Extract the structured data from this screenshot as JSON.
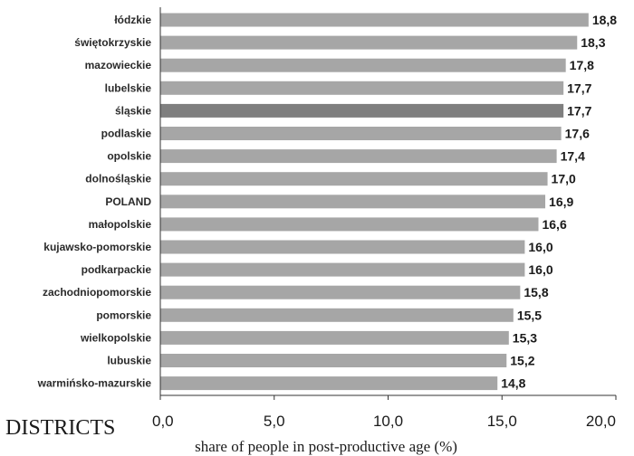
{
  "chart_data": {
    "type": "bar",
    "orientation": "horizontal",
    "categories": [
      "łódzkie",
      "świętokrzyskie",
      "mazowieckie",
      "lubelskie",
      "śląskie",
      "podlaskie",
      "opolskie",
      "dolnośląskie",
      "POLAND",
      "małopolskie",
      "kujawsko-pomorskie",
      "podkarpackie",
      "zachodniopomorskie",
      "pomorskie",
      "wielkopolskie",
      "lubuskie",
      "warmińsko-mazurskie"
    ],
    "values": [
      18.8,
      18.3,
      17.8,
      17.7,
      17.7,
      17.6,
      17.4,
      17.0,
      16.9,
      16.6,
      16.0,
      16.0,
      15.8,
      15.5,
      15.3,
      15.2,
      14.8
    ],
    "value_labels": [
      "18,8",
      "18,3",
      "17,8",
      "17,7",
      "17,7",
      "17,6",
      "17,4",
      "17,0",
      "16,9",
      "16,6",
      "16,0",
      "16,0",
      "15,8",
      "15,5",
      "15,3",
      "15,2",
      "14,8"
    ],
    "highlight": "śląskie",
    "xlabel": "share of people in post-productive age (%)",
    "ylabel": "DISTRICTS",
    "xlim": [
      0,
      20
    ],
    "xticks": [
      0,
      5,
      10,
      15,
      20
    ],
    "xtick_labels": [
      "0,0",
      "5,0",
      "10,0",
      "15,0",
      "20,0"
    ],
    "grid": false,
    "colors": {
      "bar": "#a6a6a6",
      "highlight": "#7f7f7f",
      "text": "#1a1a1a"
    }
  }
}
